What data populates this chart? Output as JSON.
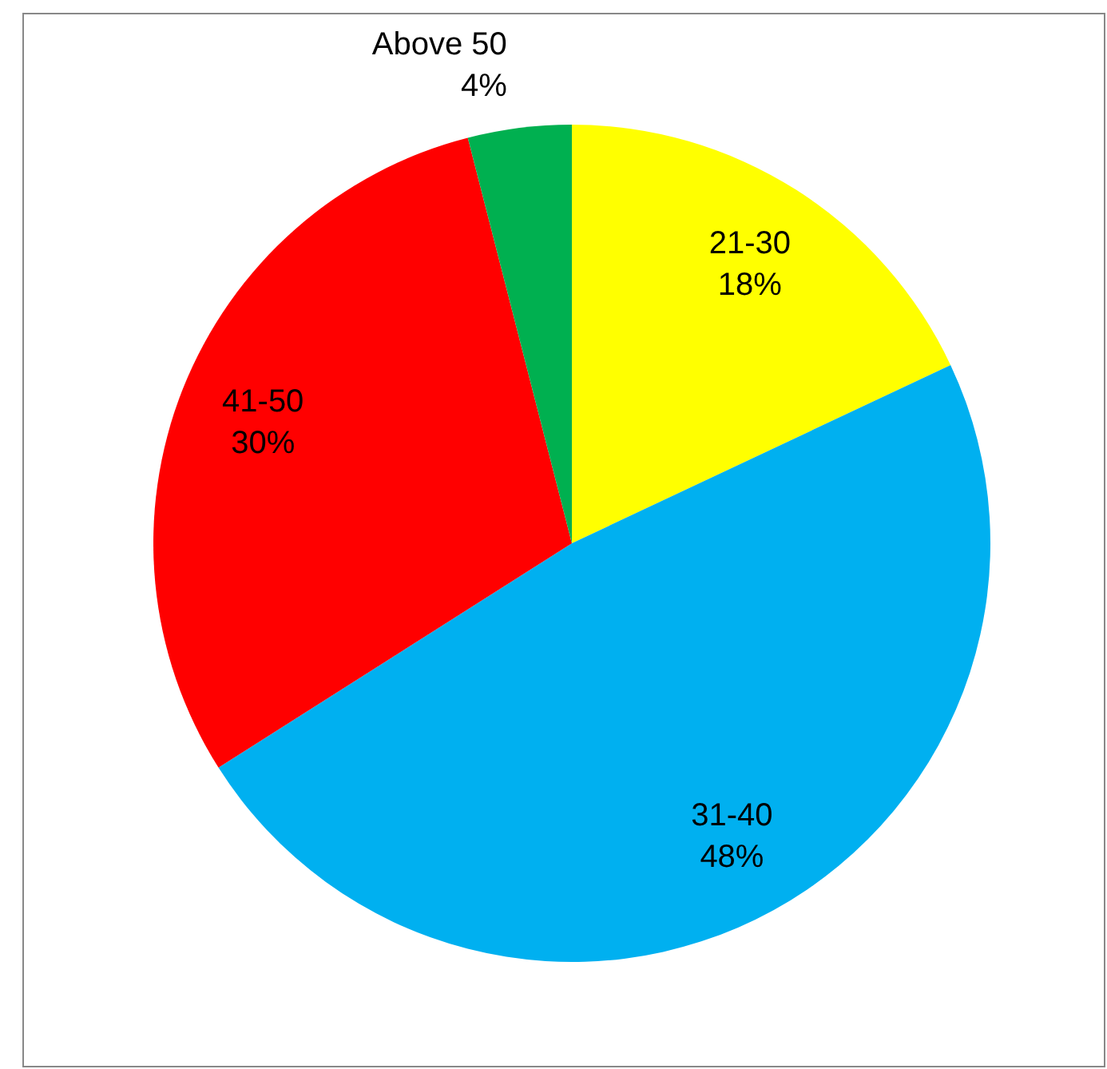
{
  "chart_data": {
    "type": "pie",
    "categories": [
      "21-30",
      "31-40",
      "41-50",
      "Above 50"
    ],
    "values": [
      18,
      48,
      30,
      4
    ],
    "value_labels": [
      "18%",
      "48%",
      "30%",
      "4%"
    ],
    "colors": [
      "#ffff00",
      "#00b0f0",
      "#ff0000",
      "#00b050"
    ]
  }
}
